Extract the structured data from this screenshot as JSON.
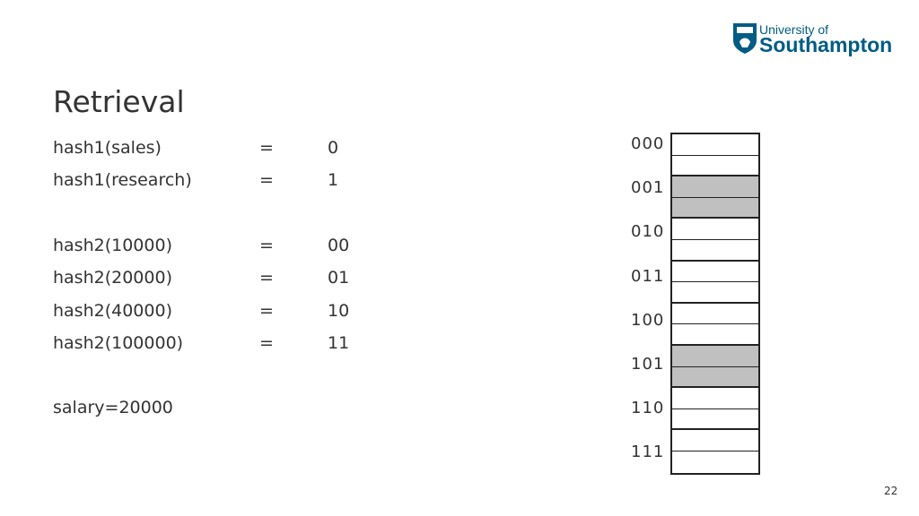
{
  "logo": {
    "line1": "University of",
    "line2": "Southampton",
    "color": "#005c84"
  },
  "title": "Retrieval",
  "hashes": [
    {
      "name": "hash1(sales)",
      "eq": "=",
      "value": "0"
    },
    {
      "name": "hash1(research)",
      "eq": "=",
      "value": "1"
    },
    {
      "name": "hash2(10000)",
      "eq": "=",
      "value": "00"
    },
    {
      "name": "hash2(20000)",
      "eq": "=",
      "value": "01"
    },
    {
      "name": "hash2(40000)",
      "eq": "=",
      "value": "10"
    },
    {
      "name": "hash2(100000)",
      "eq": "=",
      "value": "11"
    }
  ],
  "query": "salary=20000",
  "buckets": [
    {
      "label": "000",
      "highlighted": false
    },
    {
      "label": "001",
      "highlighted": true
    },
    {
      "label": "010",
      "highlighted": false
    },
    {
      "label": "011",
      "highlighted": false
    },
    {
      "label": "100",
      "highlighted": false
    },
    {
      "label": "101",
      "highlighted": true
    },
    {
      "label": "110",
      "highlighted": false
    },
    {
      "label": "111",
      "highlighted": false
    }
  ],
  "page_number": "22"
}
